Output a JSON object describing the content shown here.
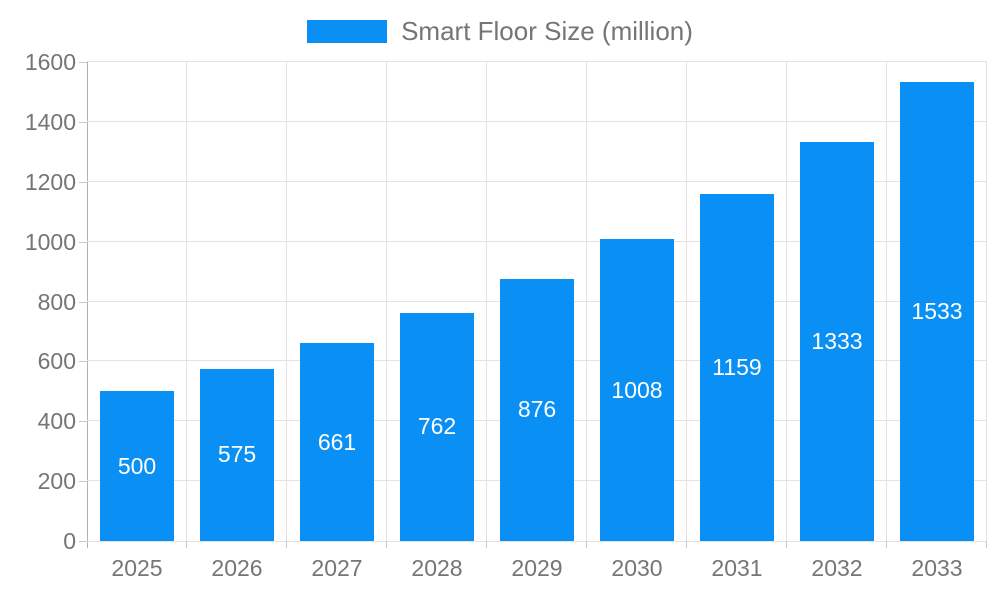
{
  "chart_data": {
    "type": "bar",
    "title": "",
    "legend_label": "Smart Floor Size (million)",
    "legend_position": "top-center",
    "categories": [
      "2025",
      "2026",
      "2027",
      "2028",
      "2029",
      "2030",
      "2031",
      "2032",
      "2033"
    ],
    "values": [
      500,
      575,
      661,
      762,
      876,
      1008,
      1159,
      1333,
      1533
    ],
    "xlabel": "",
    "ylabel": "",
    "ylim": [
      0,
      1600
    ],
    "ytick_step": 200,
    "ytick_labels": [
      "0",
      "200",
      "400",
      "600",
      "800",
      "1000",
      "1200",
      "1400",
      "1600"
    ],
    "grid": true,
    "value_labels_shown": true,
    "colors": {
      "bar": "#0a90f5",
      "bar_value_text": "#ffffff",
      "axis_text": "#757575",
      "legend_text": "#757575",
      "gridline": "#e3e3e3",
      "axis_line": "#b0b0b0",
      "background": "#ffffff"
    }
  }
}
